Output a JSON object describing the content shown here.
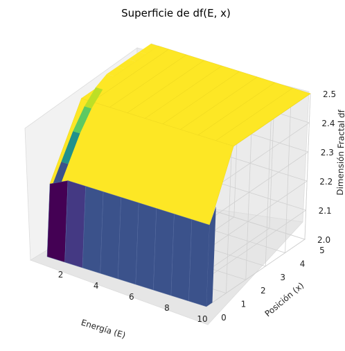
{
  "chart_data": {
    "type": "surface3d",
    "title": "Superficie de df(E, x)",
    "xlabel": "Energía (E)",
    "ylabel": "Posición (x)",
    "zlabel": "Dimensión Fractal df",
    "x_ticks": [
      2,
      4,
      6,
      8,
      10
    ],
    "y_ticks": [
      0,
      1,
      2,
      3,
      4,
      5
    ],
    "z_ticks": [
      "2.0",
      "2.1",
      "2.2",
      "2.3",
      "2.4",
      "2.5"
    ],
    "xlim": [
      1,
      10
    ],
    "ylim": [
      0,
      5
    ],
    "zlim": [
      2.0,
      2.5
    ],
    "colormap": "viridis",
    "grid": true,
    "surface": {
      "E": [
        1,
        2,
        3,
        4,
        5,
        6,
        7,
        8,
        9,
        10
      ],
      "x": [
        0,
        0.55,
        1.1,
        1.65,
        2.2,
        2.75,
        3.3,
        3.85,
        4.4,
        5.0
      ],
      "df_front_row_x0": [
        2.25,
        2.28,
        2.28,
        2.28,
        2.28,
        2.28,
        2.28,
        2.28,
        2.28,
        2.28
      ],
      "df_plateau": 2.5,
      "df_low_energy_edge": [
        2.22,
        2.3,
        2.38,
        2.44,
        2.48,
        2.5,
        2.5,
        2.5,
        2.5,
        2.5
      ]
    }
  }
}
